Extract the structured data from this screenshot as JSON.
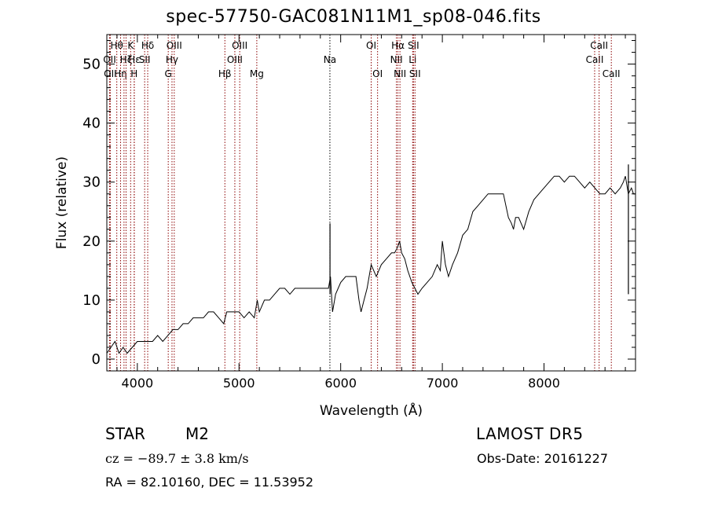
{
  "title": "spec-57750-GAC081N11M1_sp08-046.fits",
  "info": {
    "object_type": "STAR",
    "subclass": "M2",
    "survey": "LAMOST  DR5",
    "cz": "cz = −89.7 ± 3.8 km/s",
    "obs_date": "Obs-Date: 20161227",
    "radec": "RA =  82.10160, DEC =  11.53952"
  },
  "colors": {
    "spectrum": "#000000",
    "line_marker": "#8b0000",
    "line_marker_strong": "#000000",
    "axes": "#000000"
  },
  "chart_data": {
    "type": "line",
    "xlabel": "Wavelength (Å)",
    "ylabel": "Flux (relative)",
    "xlim": [
      3700,
      8900
    ],
    "ylim": [
      -2,
      55
    ],
    "x_ticks": [
      4000,
      5000,
      6000,
      7000,
      8000
    ],
    "y_ticks": [
      0,
      10,
      20,
      30,
      40,
      50
    ],
    "grid": false,
    "series": [
      {
        "x": [
          3700,
          3740,
          3780,
          3820,
          3860,
          3900,
          3950,
          4000,
          4050,
          4100,
          4150,
          4200,
          4250,
          4300,
          4350,
          4400,
          4450,
          4500,
          4550,
          4600,
          4650,
          4700,
          4750,
          4800,
          4850,
          4880,
          4920,
          4960,
          5000,
          5050,
          5100,
          5150,
          5180,
          5200,
          5250,
          5300,
          5350,
          5400,
          5450,
          5500,
          5550,
          5600,
          5650,
          5700,
          5750,
          5800,
          5850,
          5880,
          5900,
          5920,
          5950,
          6000,
          6050,
          6100,
          6150,
          6180,
          6200,
          6230,
          6260,
          6300,
          6350,
          6400,
          6450,
          6500,
          6530,
          6560,
          6580,
          6600,
          6630,
          6660,
          6700,
          6730,
          6760,
          6800,
          6850,
          6900,
          6950,
          6980,
          7000,
          7030,
          7060,
          7100,
          7150,
          7200,
          7250,
          7300,
          7350,
          7400,
          7450,
          7500,
          7550,
          7600,
          7650,
          7680,
          7700,
          7720,
          7750,
          7800,
          7850,
          7900,
          7950,
          8000,
          8050,
          8100,
          8150,
          8200,
          8250,
          8300,
          8350,
          8400,
          8450,
          8500,
          8550,
          8600,
          8650,
          8700,
          8750,
          8780,
          8800,
          8830,
          8860,
          8880,
          8900
        ],
        "y": [
          1,
          2,
          3,
          1,
          2,
          1,
          2,
          3,
          3,
          3,
          3,
          4,
          3,
          4,
          5,
          5,
          6,
          6,
          7,
          7,
          7,
          8,
          8,
          7,
          6,
          8,
          8,
          8,
          8,
          7,
          8,
          7,
          10,
          8,
          10,
          10,
          11,
          12,
          12,
          11,
          12,
          12,
          12,
          12,
          12,
          12,
          12,
          12,
          14,
          8,
          11,
          13,
          14,
          14,
          14,
          10,
          8,
          10,
          12,
          16,
          14,
          16,
          17,
          18,
          18,
          19,
          20,
          18,
          17,
          15,
          13,
          12,
          11,
          12,
          13,
          14,
          16,
          15,
          20,
          16,
          14,
          16,
          18,
          21,
          22,
          25,
          26,
          27,
          28,
          28,
          28,
          28,
          24,
          23,
          22,
          24,
          24,
          22,
          25,
          27,
          28,
          29,
          30,
          31,
          31,
          30,
          31,
          31,
          30,
          29,
          30,
          29,
          28,
          28,
          29,
          28,
          29,
          30,
          31,
          28,
          29,
          28,
          28
        ]
      }
    ],
    "spikes": [
      {
        "x": 5895,
        "y": 23
      },
      {
        "x": 8830,
        "y": 33
      }
    ],
    "line_markers": [
      {
        "x": 3727,
        "label": "OII",
        "row": 1,
        "strong": false
      },
      {
        "x": 3734,
        "label": "OII",
        "row": 2,
        "strong": false
      },
      {
        "x": 3798,
        "label": "Hθ",
        "row": 0,
        "strong": false
      },
      {
        "x": 3835,
        "label": "Hη",
        "row": 2,
        "strong": false
      },
      {
        "x": 3869,
        "label": "",
        "row": 0,
        "strong": false
      },
      {
        "x": 3889,
        "label": "Hζ",
        "row": 1,
        "strong": false
      },
      {
        "x": 3934,
        "label": "K",
        "row": 0,
        "strong": false
      },
      {
        "x": 3969,
        "label": "H",
        "row": 2,
        "strong": false
      },
      {
        "x": 3970,
        "label": "Hε",
        "row": 1,
        "strong": false
      },
      {
        "x": 4072,
        "label": "SII",
        "row": 1,
        "strong": false
      },
      {
        "x": 4102,
        "label": "Hδ",
        "row": 0,
        "strong": false
      },
      {
        "x": 4304,
        "label": "G",
        "row": 2,
        "strong": false
      },
      {
        "x": 4341,
        "label": "Hγ",
        "row": 1,
        "strong": false
      },
      {
        "x": 4363,
        "label": "OIII",
        "row": 0,
        "strong": false
      },
      {
        "x": 4861,
        "label": "Hβ",
        "row": 2,
        "strong": false
      },
      {
        "x": 4959,
        "label": "OIII",
        "row": 1,
        "strong": false
      },
      {
        "x": 5007,
        "label": "OIII",
        "row": 0,
        "strong": false
      },
      {
        "x": 5175,
        "label": "Mg",
        "row": 2,
        "strong": false
      },
      {
        "x": 5894,
        "label": "Na",
        "row": 1,
        "strong": true
      },
      {
        "x": 6300,
        "label": "OI",
        "row": 0,
        "strong": false
      },
      {
        "x": 6363,
        "label": "OI",
        "row": 2,
        "strong": false
      },
      {
        "x": 6548,
        "label": "NII",
        "row": 1,
        "strong": false
      },
      {
        "x": 6563,
        "label": "Hα",
        "row": 0,
        "strong": false
      },
      {
        "x": 6583,
        "label": "NII",
        "row": 2,
        "strong": false
      },
      {
        "x": 6708,
        "label": "Li",
        "row": 1,
        "strong": false
      },
      {
        "x": 6716,
        "label": "SII",
        "row": 0,
        "strong": false
      },
      {
        "x": 6731,
        "label": "SII",
        "row": 2,
        "strong": false
      },
      {
        "x": 8498,
        "label": "CaII",
        "row": 1,
        "strong": false
      },
      {
        "x": 8542,
        "label": "CaII",
        "row": 0,
        "strong": false
      },
      {
        "x": 8662,
        "label": "CaII",
        "row": 2,
        "strong": false
      }
    ]
  }
}
